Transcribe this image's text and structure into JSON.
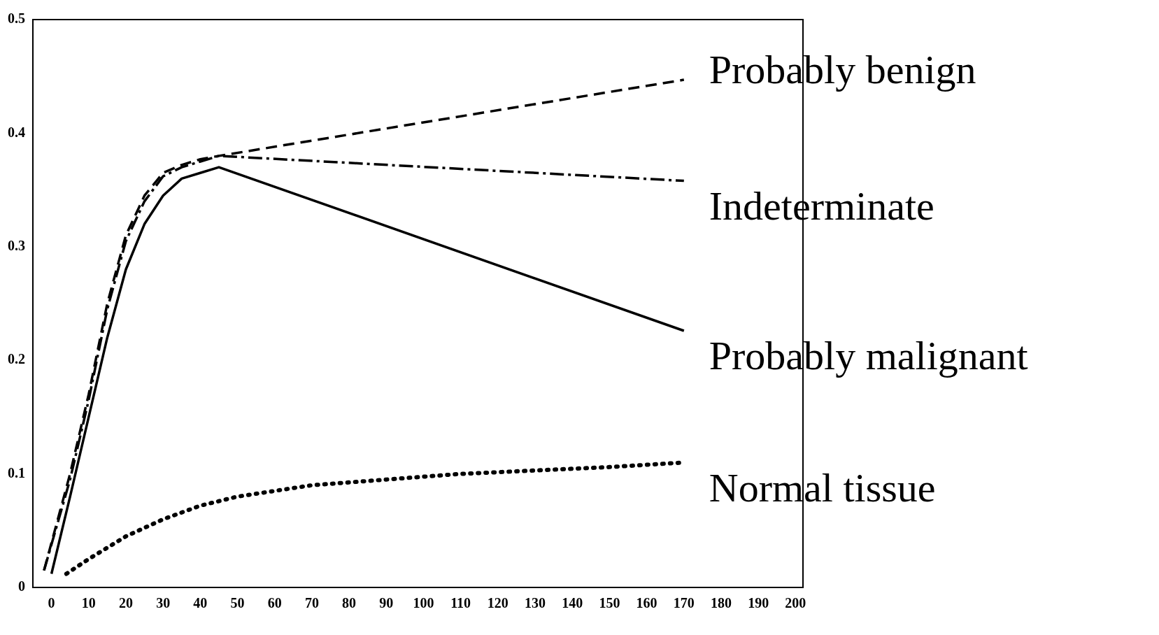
{
  "chart_data": {
    "type": "line",
    "xlim": [
      -5,
      202
    ],
    "ylim": [
      0,
      0.5
    ],
    "xticks": [
      0,
      10,
      20,
      30,
      40,
      50,
      60,
      70,
      80,
      90,
      100,
      110,
      120,
      130,
      140,
      150,
      160,
      170,
      180,
      190,
      200
    ],
    "yticks": [
      0,
      0.1,
      0.2,
      0.3,
      0.4,
      0.5
    ],
    "grid": false,
    "legend": false,
    "marker": "none",
    "series": [
      {
        "name": "Probably benign",
        "color": "#000000",
        "line_style": "dashed",
        "x": [
          -2,
          5,
          10,
          15,
          20,
          25,
          30,
          35,
          40,
          45,
          170
        ],
        "values": [
          0.015,
          0.1,
          0.17,
          0.25,
          0.31,
          0.345,
          0.365,
          0.372,
          0.377,
          0.38,
          0.447
        ]
      },
      {
        "name": "Indeterminate",
        "color": "#000000",
        "line_style": "dashdot",
        "x": [
          -2,
          5,
          10,
          15,
          20,
          25,
          30,
          35,
          40,
          45,
          170
        ],
        "values": [
          0.015,
          0.095,
          0.165,
          0.245,
          0.305,
          0.34,
          0.362,
          0.37,
          0.375,
          0.38,
          0.358
        ]
      },
      {
        "name": "Probably malignant",
        "color": "#000000",
        "line_style": "solid",
        "x": [
          0,
          5,
          10,
          15,
          20,
          25,
          30,
          35,
          40,
          45,
          170
        ],
        "values": [
          0.012,
          0.08,
          0.15,
          0.22,
          0.28,
          0.32,
          0.345,
          0.36,
          0.365,
          0.37,
          0.226
        ]
      },
      {
        "name": "Normal tissue",
        "color": "#000000",
        "line_style": "dotted",
        "x": [
          4,
          10,
          20,
          30,
          40,
          50,
          70,
          90,
          110,
          130,
          150,
          170
        ],
        "values": [
          0.012,
          0.025,
          0.045,
          0.06,
          0.072,
          0.08,
          0.09,
          0.095,
          0.1,
          0.103,
          0.106,
          0.11
        ]
      }
    ]
  }
}
